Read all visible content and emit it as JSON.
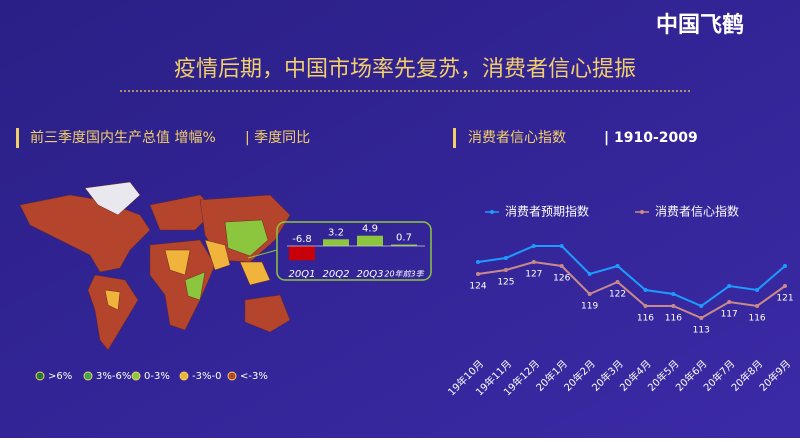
{
  "header": {
    "logo": "中国飞鹤",
    "title": "疫情后期，中国市场率先复苏，消费者信心提振"
  },
  "map": {
    "title": "前三季度国内生产总值 增幅%",
    "subtitle": "| 季度同比",
    "legend": [
      {
        "label": ">6%",
        "color": "#1f7a3a"
      },
      {
        "label": "3%-6%",
        "color": "#3fa34d"
      },
      {
        "label": "0-3%",
        "color": "#8cc63f"
      },
      {
        "label": "-3%-0",
        "color": "#f0b43c"
      },
      {
        "label": "<-3%",
        "color": "#b5442c"
      }
    ]
  },
  "chart_data": [
    {
      "type": "bar",
      "categories": [
        "20Q1",
        "20Q2",
        "20Q3",
        "20年前3季"
      ],
      "values": [
        -6.8,
        3.2,
        4.9,
        0.7
      ],
      "colors": [
        "#c8000a",
        "#8cc63f",
        "#8cc63f",
        "#8cc63f"
      ]
    },
    {
      "type": "line",
      "title": "消费者信心指数",
      "subtitle": "| 1910-2009",
      "categories": [
        "19年10月",
        "19年11月",
        "19年12月",
        "20年1月",
        "20年2月",
        "20年3月",
        "20年4月",
        "20年5月",
        "20年6月",
        "20年7月",
        "20年8月",
        "20年9月"
      ],
      "series": [
        {
          "name": "消费者预期指数",
          "color": "#1e9bff",
          "values": [
            127,
            128,
            131,
            131,
            124,
            126,
            120,
            119,
            116,
            121,
            120,
            126
          ]
        },
        {
          "name": "消费者信心指数",
          "color": "#c98a8a",
          "values": [
            124,
            125,
            127,
            126,
            119,
            122,
            116,
            116,
            113,
            117,
            116,
            121
          ]
        }
      ],
      "legend": "top"
    }
  ]
}
